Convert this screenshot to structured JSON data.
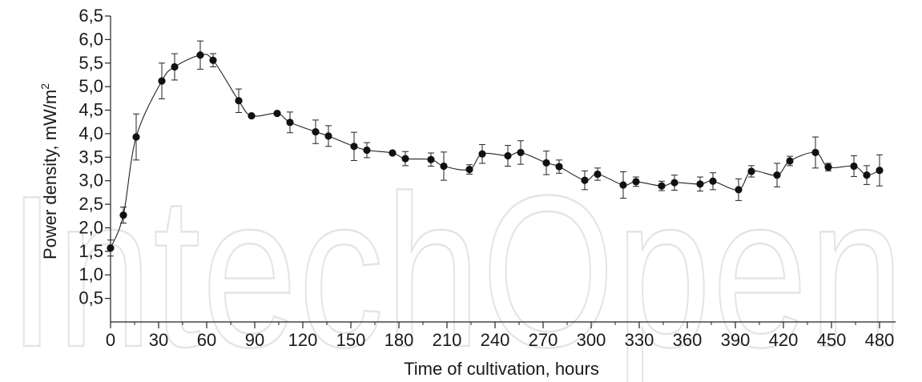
{
  "chart_data": {
    "type": "line",
    "xlabel": "Time of cultivation, hours",
    "ylabel": "Power density, mW/m",
    "ylabel_superscript": "2",
    "xlim": [
      0,
      490
    ],
    "ylim": [
      0,
      6.5
    ],
    "x_ticks": [
      "0",
      "30",
      "60",
      "90",
      "120",
      "150",
      "180",
      "210",
      "240",
      "270",
      "300",
      "330",
      "360",
      "390",
      "420",
      "450",
      "480"
    ],
    "y_ticks": [
      "0,5",
      "1,0",
      "1,5",
      "2,0",
      "2,5",
      "3,0",
      "3,5",
      "4,0",
      "4,5",
      "5,0",
      "5,5",
      "6,0",
      "6,5"
    ],
    "grid": false,
    "marker": "filled-circle",
    "error_bars": true,
    "smooth_line": true,
    "series": [
      {
        "x": [
          0,
          8,
          16,
          32,
          40,
          56,
          64,
          80,
          88,
          104,
          112,
          128,
          136,
          152,
          160,
          176,
          184,
          200,
          208,
          224,
          232,
          248,
          256,
          272,
          280,
          296,
          304,
          320,
          328,
          344,
          352,
          368,
          376,
          392,
          400,
          416,
          424,
          440,
          448,
          464,
          472,
          480
        ],
        "y": [
          1.57,
          2.27,
          3.93,
          5.12,
          5.42,
          5.67,
          5.56,
          4.7,
          4.38,
          4.43,
          4.24,
          4.04,
          3.95,
          3.73,
          3.65,
          3.59,
          3.47,
          3.45,
          3.31,
          3.24,
          3.57,
          3.53,
          3.6,
          3.38,
          3.3,
          3.01,
          3.14,
          2.91,
          2.98,
          2.89,
          2.96,
          2.93,
          2.99,
          2.81,
          3.2,
          3.12,
          3.42,
          3.6,
          3.29,
          3.31,
          3.12,
          3.22
        ],
        "err": [
          0.17,
          0.17,
          0.49,
          0.38,
          0.28,
          0.3,
          0.14,
          0.25,
          0.0,
          0.0,
          0.22,
          0.25,
          0.22,
          0.3,
          0.16,
          0.0,
          0.15,
          0.14,
          0.3,
          0.1,
          0.2,
          0.22,
          0.25,
          0.25,
          0.14,
          0.2,
          0.13,
          0.28,
          0.1,
          0.1,
          0.16,
          0.15,
          0.18,
          0.23,
          0.12,
          0.25,
          0.1,
          0.33,
          0.08,
          0.22,
          0.2,
          0.33
        ]
      }
    ]
  },
  "watermark": "IntechOpen"
}
